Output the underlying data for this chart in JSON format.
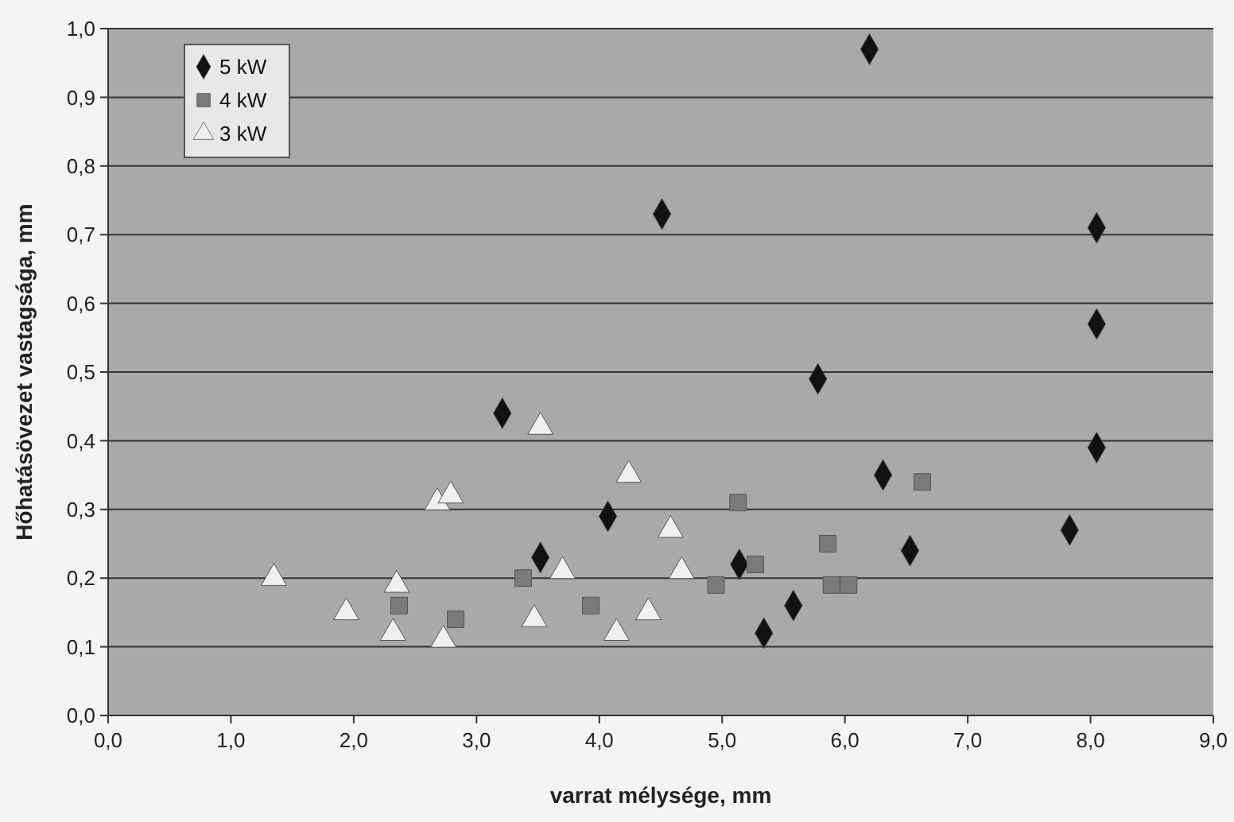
{
  "chart_data": {
    "type": "scatter",
    "xlabel": "varrat mélysége, mm",
    "ylabel": "Hőhatásövezet vastagsága, mm",
    "xlim": [
      0,
      9
    ],
    "ylim": [
      0,
      1
    ],
    "xticks": [
      {
        "value": 0,
        "label": "0,0"
      },
      {
        "value": 1,
        "label": "1,0"
      },
      {
        "value": 2,
        "label": "2,0"
      },
      {
        "value": 3,
        "label": "3,0"
      },
      {
        "value": 4,
        "label": "4,0"
      },
      {
        "value": 5,
        "label": "5,0"
      },
      {
        "value": 6,
        "label": "6,0"
      },
      {
        "value": 7,
        "label": "7,0"
      },
      {
        "value": 8,
        "label": "8,0"
      },
      {
        "value": 9,
        "label": "9,0"
      }
    ],
    "yticks": [
      {
        "value": 0,
        "label": "0,0"
      },
      {
        "value": 0.1,
        "label": "0,1"
      },
      {
        "value": 0.2,
        "label": "0,2"
      },
      {
        "value": 0.3,
        "label": "0,3"
      },
      {
        "value": 0.4,
        "label": "0,4"
      },
      {
        "value": 0.5,
        "label": "0,5"
      },
      {
        "value": 0.6,
        "label": "0,6"
      },
      {
        "value": 0.7,
        "label": "0,7"
      },
      {
        "value": 0.8,
        "label": "0,8"
      },
      {
        "value": 0.9,
        "label": "0,9"
      },
      {
        "value": 1,
        "label": "1,0"
      }
    ],
    "grid": "y",
    "legend": "top left",
    "series": [
      {
        "name": "5 kW",
        "color": "#111111",
        "marker": "diamond",
        "x": [
          3.21,
          4.51,
          6.2,
          8.05,
          8.05,
          5.78,
          8.05,
          6.31,
          4.07,
          3.52,
          5.14,
          5.58,
          5.34,
          6.53,
          7.83
        ],
        "values": [
          0.44,
          0.73,
          0.97,
          0.71,
          0.57,
          0.49,
          0.39,
          0.35,
          0.29,
          0.23,
          0.22,
          0.16,
          0.12,
          0.24,
          0.27
        ]
      },
      {
        "name": "4 kW",
        "color": "#7a7a7a",
        "marker": "square",
        "x": [
          2.37,
          2.83,
          3.38,
          3.93,
          4.95,
          5.13,
          5.27,
          5.86,
          5.89,
          6.03,
          6.63
        ],
        "values": [
          0.16,
          0.14,
          0.2,
          0.16,
          0.19,
          0.31,
          0.22,
          0.25,
          0.19,
          0.19,
          0.34
        ]
      },
      {
        "name": "3 kW",
        "color": "#f0f0f0",
        "marker": "triangle",
        "x": [
          1.35,
          1.94,
          2.32,
          2.35,
          2.68,
          2.73,
          2.79,
          3.47,
          3.52,
          3.7,
          4.14,
          4.24,
          4.4,
          4.58,
          4.67
        ],
        "values": [
          0.2,
          0.15,
          0.12,
          0.19,
          0.31,
          0.11,
          0.32,
          0.14,
          0.42,
          0.21,
          0.12,
          0.35,
          0.15,
          0.27,
          0.21
        ]
      }
    ]
  }
}
